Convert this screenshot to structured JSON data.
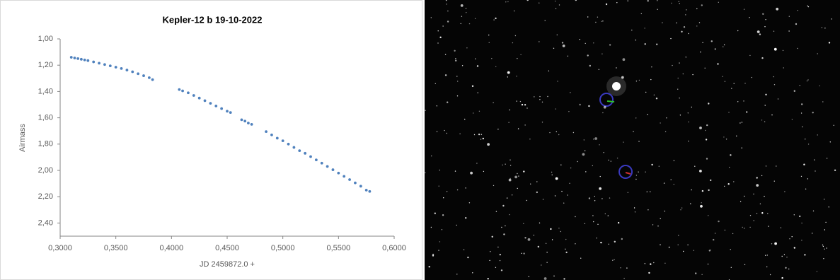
{
  "chart_data": {
    "type": "scatter",
    "title": "Kepler-12 b 19-10-2022",
    "x_label": "JD 2459872.0 +",
    "y_label": "Airmass",
    "xlim": [
      0.3,
      0.6
    ],
    "xticks": [
      {
        "value": 0.3,
        "label": "0,3000"
      },
      {
        "value": 0.35,
        "label": "0,3500"
      },
      {
        "value": 0.4,
        "label": "0,4000"
      },
      {
        "value": 0.45,
        "label": "0,4500"
      },
      {
        "value": 0.5,
        "label": "0,5000"
      },
      {
        "value": 0.55,
        "label": "0,5500"
      },
      {
        "value": 0.6,
        "label": "0,6000"
      }
    ],
    "ylim": [
      1.0,
      2.5
    ],
    "y_inverted": true,
    "yticks": [
      {
        "value": 1.0,
        "label": "1,00"
      },
      {
        "value": 1.2,
        "label": "1,20"
      },
      {
        "value": 1.4,
        "label": "1,40"
      },
      {
        "value": 1.6,
        "label": "1,60"
      },
      {
        "value": 1.8,
        "label": "1,80"
      },
      {
        "value": 2.0,
        "label": "2,00"
      },
      {
        "value": 2.2,
        "label": "2,20"
      },
      {
        "value": 2.4,
        "label": "2,40"
      }
    ],
    "grid": false,
    "x": [
      0.31,
      0.313,
      0.316,
      0.319,
      0.322,
      0.325,
      0.33,
      0.335,
      0.34,
      0.345,
      0.35,
      0.355,
      0.36,
      0.365,
      0.37,
      0.375,
      0.38,
      0.383,
      0.407,
      0.41,
      0.415,
      0.42,
      0.425,
      0.43,
      0.435,
      0.44,
      0.445,
      0.45,
      0.453,
      0.463,
      0.466,
      0.469,
      0.472,
      0.485,
      0.49,
      0.495,
      0.5,
      0.505,
      0.51,
      0.515,
      0.52,
      0.525,
      0.53,
      0.535,
      0.54,
      0.545,
      0.55,
      0.555,
      0.56,
      0.565,
      0.57,
      0.575,
      0.578
    ],
    "series": [
      {
        "color": "#4f81bd",
        "values": [
          1.14,
          1.145,
          1.15,
          1.155,
          1.16,
          1.165,
          1.175,
          1.185,
          1.195,
          1.205,
          1.215,
          1.225,
          1.237,
          1.25,
          1.265,
          1.28,
          1.295,
          1.31,
          1.385,
          1.395,
          1.41,
          1.43,
          1.45,
          1.47,
          1.49,
          1.51,
          1.53,
          1.55,
          1.56,
          1.615,
          1.625,
          1.64,
          1.65,
          1.705,
          1.73,
          1.755,
          1.775,
          1.8,
          1.825,
          1.85,
          1.87,
          1.895,
          1.92,
          1.945,
          1.97,
          1.995,
          2.02,
          2.045,
          2.07,
          2.095,
          2.12,
          2.15,
          2.16
        ]
      }
    ]
  }
}
